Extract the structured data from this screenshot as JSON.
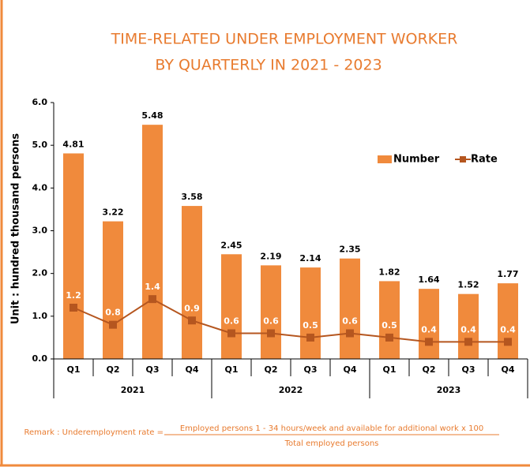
{
  "chart_data": {
    "type": "bar_line",
    "title_lines": [
      "TIME-RELATED UNDER EMPLOYMENT WORKER",
      "BY QUARTERLY IN 2021 - 2023"
    ],
    "y_label": "Unit : hundred thousand persons",
    "categories": [
      "Q1",
      "Q2",
      "Q3",
      "Q4",
      "Q1",
      "Q2",
      "Q3",
      "Q4",
      "Q1",
      "Q2",
      "Q3",
      "Q4"
    ],
    "groups": [
      "2021",
      "2022",
      "2023"
    ],
    "series": [
      {
        "name": "Number",
        "type": "bar",
        "color": "#f08a3c",
        "values": [
          4.81,
          3.22,
          5.48,
          3.58,
          2.45,
          2.19,
          2.14,
          2.35,
          1.82,
          1.64,
          1.52,
          1.77
        ]
      },
      {
        "name": "Rate",
        "type": "line",
        "color": "#b5561f",
        "values": [
          1.2,
          0.8,
          1.4,
          0.9,
          0.6,
          0.6,
          0.5,
          0.6,
          0.5,
          0.4,
          0.4,
          0.4
        ]
      }
    ],
    "ylim": [
      0,
      6
    ],
    "yticks": [
      {
        "value": 0,
        "label": "0.0"
      },
      {
        "value": 1,
        "label": "1.0"
      },
      {
        "value": 2,
        "label": "2.0"
      },
      {
        "value": 3,
        "label": "3.0"
      },
      {
        "value": 4,
        "label": "4.0"
      },
      {
        "value": 5,
        "label": "5.0"
      },
      {
        "value": 6,
        "label": "6.0"
      }
    ],
    "legend": "right",
    "remark": {
      "label": "Remark : Underemployment rate =",
      "numerator": "Employed persons 1 - 34 hours/week and available for additional work  x 100",
      "denominator": "Total employed persons"
    }
  }
}
